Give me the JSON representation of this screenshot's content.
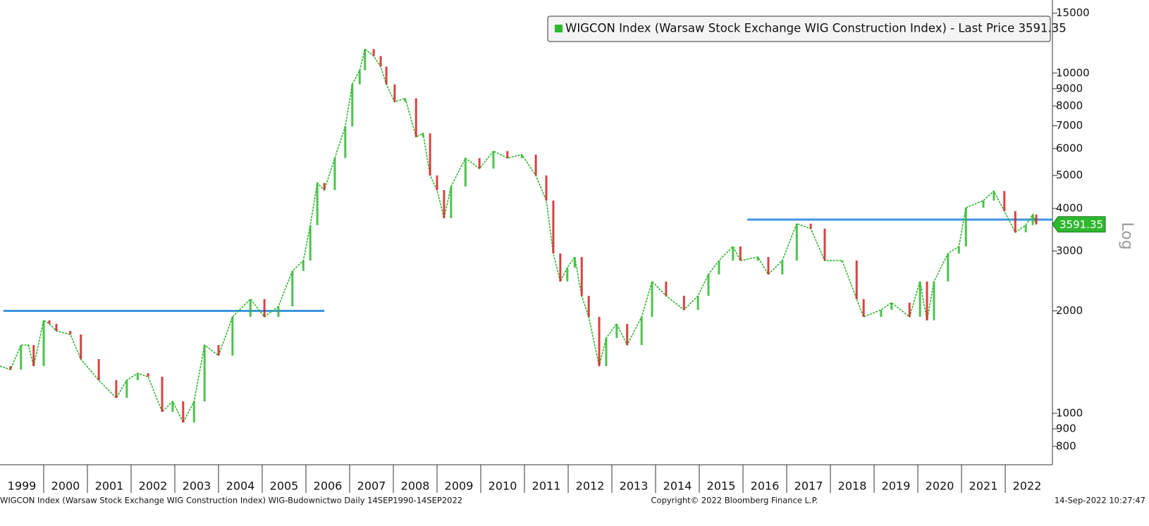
{
  "chart_data": {
    "type": "line",
    "log_scale": true,
    "scale_label": "Log",
    "xlim": [
      1999,
      2023.08
    ],
    "xticks": [
      1999,
      2000,
      2001,
      2002,
      2003,
      2004,
      2005,
      2006,
      2007,
      2008,
      2009,
      2010,
      2011,
      2012,
      2013,
      2014,
      2015,
      2016,
      2017,
      2018,
      2019,
      2020,
      2021,
      2022
    ],
    "ylim": [
      706,
      16400
    ],
    "yticks": [
      800,
      900,
      1000,
      2000,
      3000,
      4000,
      5000,
      6000,
      7000,
      8000,
      9000,
      10000,
      15000
    ],
    "series": [
      {
        "name": "WIGCON Index (Warsaw Stock Exchange WIG Construction Index) - Last Price 3591.35",
        "color": "#2eb82e",
        "up_color": "#2eb82e",
        "down_color": "#d42020",
        "x": [
          1999.0,
          1999.24,
          1999.48,
          1999.65,
          1999.77,
          2000.0,
          2000.13,
          2000.29,
          2000.61,
          2000.85,
          2001.26,
          2001.66,
          2001.9,
          2002.15,
          2002.39,
          2002.71,
          2002.95,
          2003.19,
          2003.44,
          2003.68,
          2004.0,
          2004.32,
          2004.73,
          2005.05,
          2005.37,
          2005.69,
          2005.94,
          2006.1,
          2006.26,
          2006.42,
          2006.66,
          2006.9,
          2007.06,
          2007.23,
          2007.35,
          2007.55,
          2007.71,
          2007.84,
          2008.03,
          2008.27,
          2008.52,
          2008.68,
          2008.84,
          2009.0,
          2009.16,
          2009.32,
          2009.65,
          2009.97,
          2010.29,
          2010.61,
          2010.94,
          2011.26,
          2011.5,
          2011.66,
          2011.82,
          2011.98,
          2012.15,
          2012.31,
          2012.47,
          2012.71,
          2012.87,
          2013.11,
          2013.35,
          2013.68,
          2013.92,
          2014.24,
          2014.65,
          2014.97,
          2015.21,
          2015.45,
          2015.77,
          2015.94,
          2016.34,
          2016.58,
          2016.9,
          2017.23,
          2017.55,
          2017.87,
          2018.27,
          2018.6,
          2018.76,
          2019.16,
          2019.4,
          2019.81,
          2020.05,
          2020.21,
          2020.37,
          2020.69,
          2020.94,
          2021.1,
          2021.5,
          2021.74,
          2021.98,
          2022.23,
          2022.47,
          2022.63,
          2022.71
        ],
        "values": [
          1376,
          1344,
          1587,
          1587,
          1376,
          1876,
          1832,
          1746,
          1705,
          1443,
          1251,
          1110,
          1251,
          1312,
          1281,
          1010,
          1084,
          940,
          1084,
          1587,
          1478,
          1921,
          2166,
          1921,
          2063,
          2620,
          2811,
          3573,
          4755,
          4530,
          5625,
          6968,
          9267,
          10190,
          11770,
          11220,
          10450,
          9267,
          8230,
          8430,
          6490,
          6650,
          5000,
          4530,
          3747,
          4640,
          5625,
          5240,
          5900,
          5625,
          5760,
          5000,
          4220,
          2950,
          2440,
          2680,
          2880,
          2215,
          1921,
          1376,
          1665,
          1832,
          1587,
          1921,
          2440,
          2215,
          2014,
          2215,
          2560,
          2811,
          3093,
          2811,
          2880,
          2560,
          2811,
          3609,
          3490,
          2811,
          2811,
          2166,
          1921,
          2014,
          2115,
          1921,
          2440,
          1876,
          2440,
          2950,
          3093,
          4020,
          4220,
          4500,
          3929,
          3405,
          3573,
          3838,
          3591.35
        ]
      }
    ],
    "last_price": {
      "value": 3591.35,
      "label": "3591.35"
    },
    "levels": [
      {
        "value": 2000,
        "x": [
          1999.08,
          2006.42
        ],
        "color": "#3d95e0"
      },
      {
        "value": 3710,
        "x": [
          2016.1,
          2023.08
        ],
        "color": "#3d95e0"
      }
    ],
    "footer": {
      "left": "WIGCON Index (Warsaw Stock Exchange WIG Construction Index) WIG-Budownictwo  Daily 14SEP1990-14SEP2022",
      "center": "Copyright© 2022 Bloomberg Finance L.P.",
      "right": "14-Sep-2022 10:27:47"
    }
  }
}
